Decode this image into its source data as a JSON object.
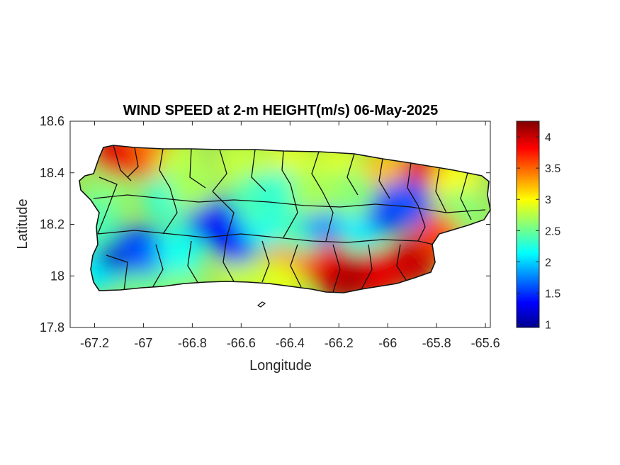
{
  "map": {
    "title": "WIND SPEED at 2-m HEIGHT(m/s) 06-May-2025",
    "xlabel": "Longitude",
    "ylabel": "Latitude",
    "xlim": [
      -67.3,
      -65.58
    ],
    "ylim": [
      17.8,
      18.6
    ],
    "xticks": [
      -67.2,
      -67,
      -66.8,
      -66.6,
      -66.4,
      -66.2,
      -66,
      -65.8,
      -65.6
    ],
    "yticks": [
      18.6,
      18.4,
      18.2,
      18,
      17.8
    ],
    "colormap": "jet",
    "region": "Puerto Rico",
    "boundaries": "municipal borders",
    "colorbar": {
      "range": [
        0.95,
        4.25
      ],
      "ticks": [
        1,
        1.5,
        2,
        2.5,
        3,
        3.5,
        4
      ],
      "colors": [
        "#00008f",
        "#0000ff",
        "#00ffff",
        "#ffff00",
        "#ff0000",
        "#800000"
      ]
    },
    "wind_field": [
      {
        "lon": -67.1,
        "lat": 18.47,
        "value": 3.9
      },
      {
        "lon": -66.95,
        "lat": 18.47,
        "value": 3.5
      },
      {
        "lon": -66.85,
        "lat": 18.43,
        "value": 2.8
      },
      {
        "lon": -66.6,
        "lat": 18.44,
        "value": 2.8
      },
      {
        "lon": -66.4,
        "lat": 18.44,
        "value": 2.9
      },
      {
        "lon": -66.2,
        "lat": 18.42,
        "value": 2.9
      },
      {
        "lon": -66.0,
        "lat": 18.4,
        "value": 3.2
      },
      {
        "lon": -65.85,
        "lat": 18.4,
        "value": 3.9
      },
      {
        "lon": -65.72,
        "lat": 18.36,
        "value": 3.0
      },
      {
        "lon": -65.7,
        "lat": 18.25,
        "value": 2.6
      },
      {
        "lon": -65.8,
        "lat": 18.15,
        "value": 3.6
      },
      {
        "lon": -65.9,
        "lat": 18.05,
        "value": 4.0
      },
      {
        "lon": -66.05,
        "lat": 18.0,
        "value": 3.9
      },
      {
        "lon": -66.18,
        "lat": 17.99,
        "value": 4.1
      },
      {
        "lon": -66.28,
        "lat": 18.07,
        "value": 3.9
      },
      {
        "lon": -66.4,
        "lat": 18.08,
        "value": 3.5
      },
      {
        "lon": -66.45,
        "lat": 17.97,
        "value": 2.9
      },
      {
        "lon": -66.6,
        "lat": 17.98,
        "value": 2.8
      },
      {
        "lon": -66.85,
        "lat": 17.99,
        "value": 2.6
      },
      {
        "lon": -67.0,
        "lat": 17.99,
        "value": 2.5
      },
      {
        "lon": -67.18,
        "lat": 18.03,
        "value": 2.1
      },
      {
        "lon": -67.1,
        "lat": 18.1,
        "value": 1.1
      },
      {
        "lon": -67.0,
        "lat": 18.1,
        "value": 1.6
      },
      {
        "lon": -66.85,
        "lat": 18.1,
        "value": 2.2
      },
      {
        "lon": -66.72,
        "lat": 18.22,
        "value": 1.3
      },
      {
        "lon": -66.62,
        "lat": 18.14,
        "value": 1.4
      },
      {
        "lon": -66.5,
        "lat": 18.2,
        "value": 2.2
      },
      {
        "lon": -66.35,
        "lat": 18.18,
        "value": 2.4
      },
      {
        "lon": -66.25,
        "lat": 18.22,
        "value": 1.8
      },
      {
        "lon": -66.1,
        "lat": 18.2,
        "value": 2.1
      },
      {
        "lon": -66.0,
        "lat": 18.26,
        "value": 1.3
      },
      {
        "lon": -65.92,
        "lat": 18.28,
        "value": 1.6
      },
      {
        "lon": -66.9,
        "lat": 18.3,
        "value": 2.3
      },
      {
        "lon": -66.8,
        "lat": 18.35,
        "value": 2.7
      },
      {
        "lon": -67.15,
        "lat": 18.3,
        "value": 2.6
      },
      {
        "lon": -67.2,
        "lat": 18.2,
        "value": 2.4
      },
      {
        "lon": -66.55,
        "lat": 18.3,
        "value": 2.4
      },
      {
        "lon": -66.45,
        "lat": 18.32,
        "value": 2.3
      },
      {
        "lon": -66.15,
        "lat": 18.32,
        "value": 2.6
      },
      {
        "lon": -66.3,
        "lat": 18.33,
        "value": 2.7
      }
    ]
  }
}
